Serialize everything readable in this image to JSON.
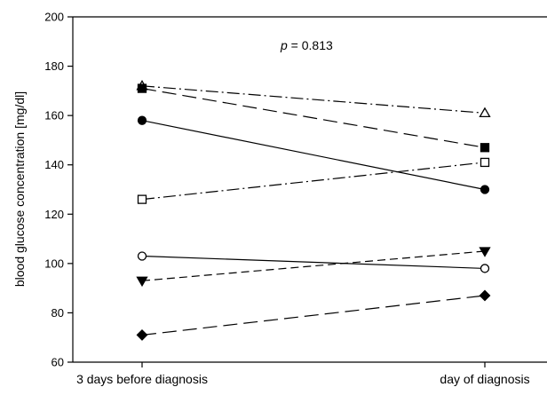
{
  "chart_data": {
    "type": "line",
    "title": "",
    "xlabel": "",
    "ylabel": "blood glucose concentration [mg/dl]",
    "categories": [
      "3 days before diagnosis",
      "day of diagnosis"
    ],
    "ylim": [
      60,
      200
    ],
    "yticks": [
      "60",
      "80",
      "100",
      "120",
      "140",
      "160",
      "180",
      "200"
    ],
    "grid": false,
    "annotation": {
      "p_symbol": "p",
      "p_text": " = 0.813"
    },
    "series": [
      {
        "values": [
          172,
          161
        ],
        "marker": "open-triangle-up",
        "line_style": "dash-dot"
      },
      {
        "values": [
          171,
          147
        ],
        "marker": "filled-square",
        "line_style": "long-dash"
      },
      {
        "values": [
          158,
          130
        ],
        "marker": "filled-circle",
        "line_style": "solid"
      },
      {
        "values": [
          126,
          141
        ],
        "marker": "open-square",
        "line_style": "dash-dot"
      },
      {
        "values": [
          103,
          98
        ],
        "marker": "open-circle",
        "line_style": "solid"
      },
      {
        "values": [
          93,
          105
        ],
        "marker": "filled-triangle-down",
        "line_style": "dashed"
      },
      {
        "values": [
          71,
          87
        ],
        "marker": "filled-diamond",
        "line_style": "long-dash"
      }
    ]
  }
}
